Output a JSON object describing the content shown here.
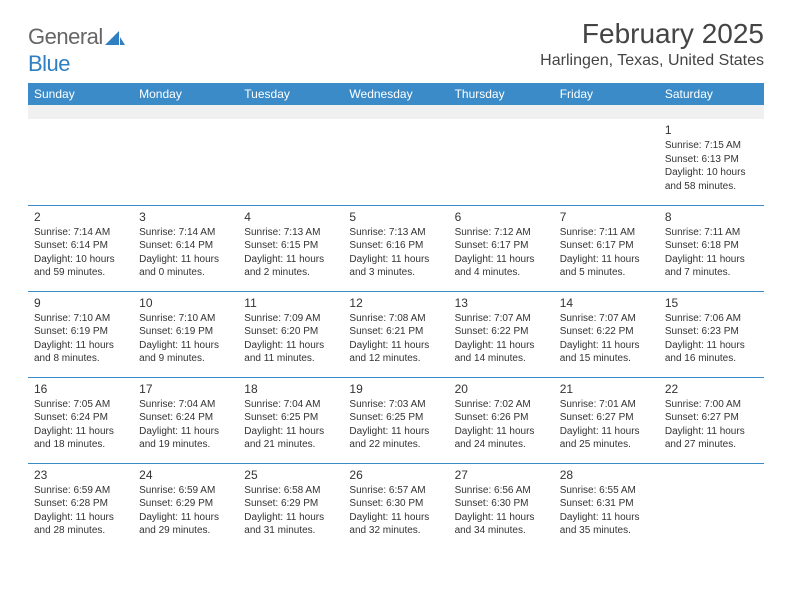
{
  "logo": {
    "text_gray": "General",
    "text_blue": "Blue"
  },
  "title": "February 2025",
  "location": "Harlingen, Texas, United States",
  "colors": {
    "header_bg": "#3b8bc8",
    "header_text": "#ffffff",
    "rule": "#3b8bc8",
    "empty_row_bg": "#f0f0f0",
    "text": "#333333",
    "logo_gray": "#666666",
    "logo_blue": "#2f7fc1"
  },
  "day_headers": [
    "Sunday",
    "Monday",
    "Tuesday",
    "Wednesday",
    "Thursday",
    "Friday",
    "Saturday"
  ],
  "weeks": [
    [
      null,
      null,
      null,
      null,
      null,
      null,
      {
        "n": "1",
        "sr": "Sunrise: 7:15 AM",
        "ss": "Sunset: 6:13 PM",
        "d1": "Daylight: 10 hours",
        "d2": "and 58 minutes."
      }
    ],
    [
      {
        "n": "2",
        "sr": "Sunrise: 7:14 AM",
        "ss": "Sunset: 6:14 PM",
        "d1": "Daylight: 10 hours",
        "d2": "and 59 minutes."
      },
      {
        "n": "3",
        "sr": "Sunrise: 7:14 AM",
        "ss": "Sunset: 6:14 PM",
        "d1": "Daylight: 11 hours",
        "d2": "and 0 minutes."
      },
      {
        "n": "4",
        "sr": "Sunrise: 7:13 AM",
        "ss": "Sunset: 6:15 PM",
        "d1": "Daylight: 11 hours",
        "d2": "and 2 minutes."
      },
      {
        "n": "5",
        "sr": "Sunrise: 7:13 AM",
        "ss": "Sunset: 6:16 PM",
        "d1": "Daylight: 11 hours",
        "d2": "and 3 minutes."
      },
      {
        "n": "6",
        "sr": "Sunrise: 7:12 AM",
        "ss": "Sunset: 6:17 PM",
        "d1": "Daylight: 11 hours",
        "d2": "and 4 minutes."
      },
      {
        "n": "7",
        "sr": "Sunrise: 7:11 AM",
        "ss": "Sunset: 6:17 PM",
        "d1": "Daylight: 11 hours",
        "d2": "and 5 minutes."
      },
      {
        "n": "8",
        "sr": "Sunrise: 7:11 AM",
        "ss": "Sunset: 6:18 PM",
        "d1": "Daylight: 11 hours",
        "d2": "and 7 minutes."
      }
    ],
    [
      {
        "n": "9",
        "sr": "Sunrise: 7:10 AM",
        "ss": "Sunset: 6:19 PM",
        "d1": "Daylight: 11 hours",
        "d2": "and 8 minutes."
      },
      {
        "n": "10",
        "sr": "Sunrise: 7:10 AM",
        "ss": "Sunset: 6:19 PM",
        "d1": "Daylight: 11 hours",
        "d2": "and 9 minutes."
      },
      {
        "n": "11",
        "sr": "Sunrise: 7:09 AM",
        "ss": "Sunset: 6:20 PM",
        "d1": "Daylight: 11 hours",
        "d2": "and 11 minutes."
      },
      {
        "n": "12",
        "sr": "Sunrise: 7:08 AM",
        "ss": "Sunset: 6:21 PM",
        "d1": "Daylight: 11 hours",
        "d2": "and 12 minutes."
      },
      {
        "n": "13",
        "sr": "Sunrise: 7:07 AM",
        "ss": "Sunset: 6:22 PM",
        "d1": "Daylight: 11 hours",
        "d2": "and 14 minutes."
      },
      {
        "n": "14",
        "sr": "Sunrise: 7:07 AM",
        "ss": "Sunset: 6:22 PM",
        "d1": "Daylight: 11 hours",
        "d2": "and 15 minutes."
      },
      {
        "n": "15",
        "sr": "Sunrise: 7:06 AM",
        "ss": "Sunset: 6:23 PM",
        "d1": "Daylight: 11 hours",
        "d2": "and 16 minutes."
      }
    ],
    [
      {
        "n": "16",
        "sr": "Sunrise: 7:05 AM",
        "ss": "Sunset: 6:24 PM",
        "d1": "Daylight: 11 hours",
        "d2": "and 18 minutes."
      },
      {
        "n": "17",
        "sr": "Sunrise: 7:04 AM",
        "ss": "Sunset: 6:24 PM",
        "d1": "Daylight: 11 hours",
        "d2": "and 19 minutes."
      },
      {
        "n": "18",
        "sr": "Sunrise: 7:04 AM",
        "ss": "Sunset: 6:25 PM",
        "d1": "Daylight: 11 hours",
        "d2": "and 21 minutes."
      },
      {
        "n": "19",
        "sr": "Sunrise: 7:03 AM",
        "ss": "Sunset: 6:25 PM",
        "d1": "Daylight: 11 hours",
        "d2": "and 22 minutes."
      },
      {
        "n": "20",
        "sr": "Sunrise: 7:02 AM",
        "ss": "Sunset: 6:26 PM",
        "d1": "Daylight: 11 hours",
        "d2": "and 24 minutes."
      },
      {
        "n": "21",
        "sr": "Sunrise: 7:01 AM",
        "ss": "Sunset: 6:27 PM",
        "d1": "Daylight: 11 hours",
        "d2": "and 25 minutes."
      },
      {
        "n": "22",
        "sr": "Sunrise: 7:00 AM",
        "ss": "Sunset: 6:27 PM",
        "d1": "Daylight: 11 hours",
        "d2": "and 27 minutes."
      }
    ],
    [
      {
        "n": "23",
        "sr": "Sunrise: 6:59 AM",
        "ss": "Sunset: 6:28 PM",
        "d1": "Daylight: 11 hours",
        "d2": "and 28 minutes."
      },
      {
        "n": "24",
        "sr": "Sunrise: 6:59 AM",
        "ss": "Sunset: 6:29 PM",
        "d1": "Daylight: 11 hours",
        "d2": "and 29 minutes."
      },
      {
        "n": "25",
        "sr": "Sunrise: 6:58 AM",
        "ss": "Sunset: 6:29 PM",
        "d1": "Daylight: 11 hours",
        "d2": "and 31 minutes."
      },
      {
        "n": "26",
        "sr": "Sunrise: 6:57 AM",
        "ss": "Sunset: 6:30 PM",
        "d1": "Daylight: 11 hours",
        "d2": "and 32 minutes."
      },
      {
        "n": "27",
        "sr": "Sunrise: 6:56 AM",
        "ss": "Sunset: 6:30 PM",
        "d1": "Daylight: 11 hours",
        "d2": "and 34 minutes."
      },
      {
        "n": "28",
        "sr": "Sunrise: 6:55 AM",
        "ss": "Sunset: 6:31 PM",
        "d1": "Daylight: 11 hours",
        "d2": "and 35 minutes."
      },
      null
    ]
  ]
}
